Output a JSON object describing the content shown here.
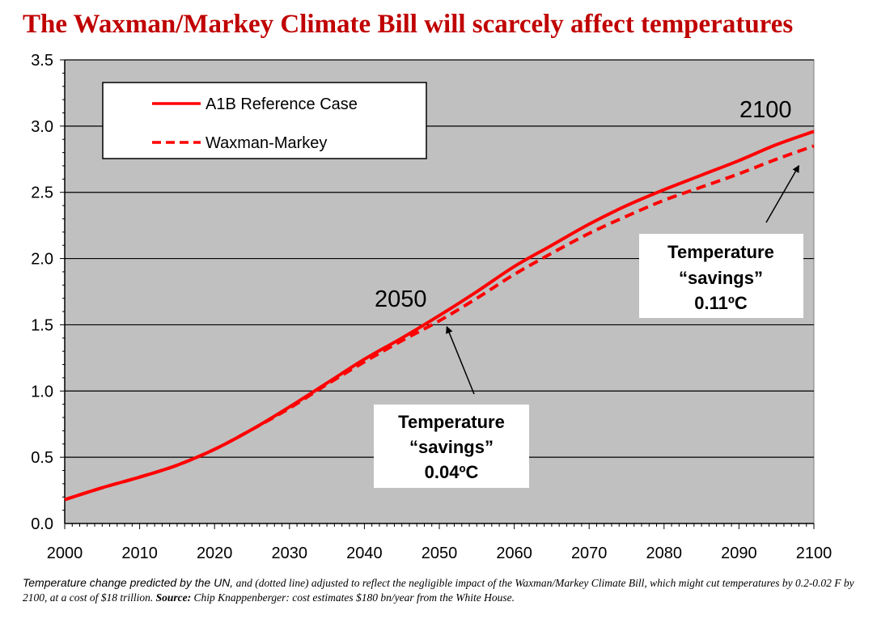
{
  "page": {
    "title": "The Waxman/Markey Climate Bill will scarcely affect temperatures",
    "footnote": {
      "lead": "Temperature change predicted by the UN,",
      "body": " and (dotted line) adjusted to reflect the negligible impact of the Waxman/Markey Climate Bill, which might cut temperatures by 0.2-0.02 F by 2100, at a cost of $18 trillion. ",
      "source_label": "Source:",
      "source_text": " Chip Knappenberger: cost estimates $180 bn/year from the White House."
    }
  },
  "colors": {
    "title": "#c00000",
    "series": "#ff0000",
    "plot_background": "#c0c0c0",
    "gridline": "#000000"
  },
  "chart_data": {
    "type": "line",
    "title": "The Waxman/Markey Climate Bill will scarcely affect temperatures",
    "xlabel": "",
    "ylabel": "",
    "xlim": [
      2000,
      2100
    ],
    "ylim": [
      0,
      3.5
    ],
    "x_ticks": [
      "2000",
      "2010",
      "2020",
      "2030",
      "2040",
      "2050",
      "2060",
      "2070",
      "2080",
      "2090",
      "2100"
    ],
    "y_ticks": [
      "0.0",
      "0.5",
      "1.0",
      "1.5",
      "2.0",
      "2.5",
      "3.0",
      "3.5"
    ],
    "grid": true,
    "legend_position": "top-left",
    "x": [
      2000,
      2005,
      2010,
      2015,
      2020,
      2025,
      2030,
      2035,
      2040,
      2045,
      2050,
      2055,
      2060,
      2065,
      2070,
      2075,
      2080,
      2085,
      2090,
      2095,
      2100
    ],
    "series": [
      {
        "name": "A1B Reference Case",
        "style": "solid",
        "values": [
          0.18,
          0.27,
          0.35,
          0.44,
          0.56,
          0.71,
          0.88,
          1.06,
          1.24,
          1.4,
          1.57,
          1.75,
          1.94,
          2.1,
          2.26,
          2.4,
          2.52,
          2.63,
          2.74,
          2.86,
          2.96
        ]
      },
      {
        "name": "Waxman-Markey",
        "style": "dashed",
        "values": [
          0.18,
          0.27,
          0.35,
          0.44,
          0.56,
          0.71,
          0.87,
          1.05,
          1.22,
          1.38,
          1.53,
          1.7,
          1.88,
          2.04,
          2.19,
          2.32,
          2.44,
          2.54,
          2.64,
          2.75,
          2.85
        ]
      }
    ],
    "annotations": {
      "year_2050": "2050",
      "year_2100": "2100",
      "callout_2050": {
        "line1": "Temperature",
        "line2": "“savings”",
        "line3": "0.04ºC",
        "points_to": {
          "x": 2051,
          "y": 1.51
        }
      },
      "callout_2100": {
        "line1": "Temperature",
        "line2": "“savings”",
        "line3": "0.11ºC",
        "points_to": {
          "x": 2098,
          "y": 2.75
        }
      }
    }
  }
}
